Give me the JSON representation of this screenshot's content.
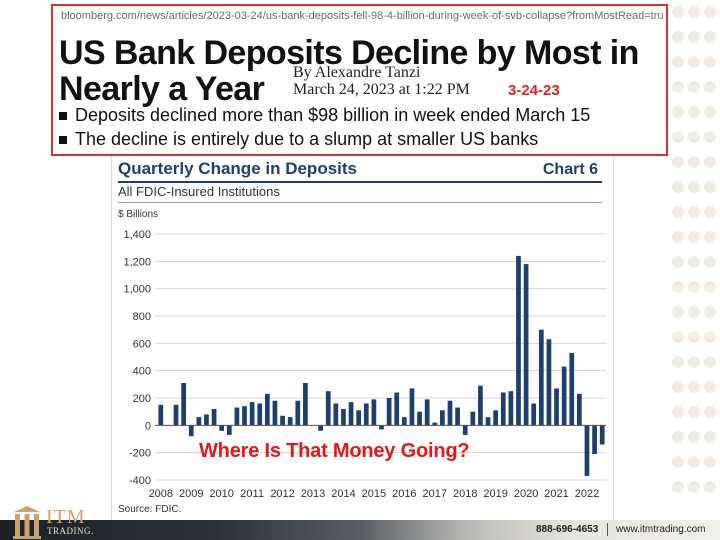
{
  "article": {
    "url": "bloomberg.com/news/articles/2023-03-24/us-bank-deposits-fell-98-4-billion-during-week-of-svb-collapse?fromMostRead=true&sref=rWFqAc",
    "headline_line1": "US Bank Deposits Decline by Most in",
    "headline_line2": "Nearly a Year",
    "author": "By Alexandre Tanzi",
    "published": "March 24, 2023 at 1:22 PM",
    "date_stamp": "3-24-23",
    "bullets": [
      "Deposits declined more than $98 billion in week ended March 15",
      "The decline is entirely due to a slump at smaller US banks"
    ],
    "border_color": "#d6332b"
  },
  "chart": {
    "title": "Quarterly Change in Deposits",
    "chart_number": "Chart 6",
    "subtitle": "All FDIC-Insured Institutions",
    "unit_label": "$ Billions",
    "source": "Source: FDIC."
  },
  "overlay_question": "Where Is That Money Going?",
  "footer": {
    "phone": "888-696-4653",
    "website": "www.itmtrading.com"
  },
  "logo": {
    "name": "ITM",
    "tagline": "TRADING."
  },
  "chart_data": {
    "type": "bar",
    "title": "Quarterly Change in Deposits",
    "subtitle": "All FDIC-Insured Institutions",
    "ylabel": "$ Billions",
    "ylim": [
      -400,
      1400
    ],
    "yticks": [
      1400,
      1200,
      1000,
      800,
      600,
      400,
      200,
      0,
      -200,
      -400
    ],
    "ytick_labels": [
      "1,400",
      "1,200",
      "1,000",
      "800",
      "600",
      "400",
      "200",
      "0",
      "-200",
      "-400"
    ],
    "xtick_labels": [
      "2008",
      "2009",
      "2010",
      "2011",
      "2012",
      "2013",
      "2014",
      "2015",
      "2016",
      "2017",
      "2018",
      "2019",
      "2020",
      "2021",
      "2022"
    ],
    "grid": true,
    "bar_color": "#1c3f6e",
    "values": [
      150,
      0,
      150,
      310,
      -80,
      60,
      80,
      120,
      -40,
      -70,
      130,
      140,
      170,
      160,
      230,
      180,
      70,
      60,
      180,
      310,
      0,
      -40,
      250,
      160,
      120,
      170,
      110,
      160,
      190,
      -30,
      200,
      240,
      60,
      270,
      100,
      190,
      20,
      110,
      180,
      130,
      -70,
      100,
      290,
      60,
      110,
      240,
      250,
      1240,
      1180,
      160,
      700,
      630,
      270,
      430,
      530,
      230,
      -370,
      -210,
      -140
    ]
  }
}
